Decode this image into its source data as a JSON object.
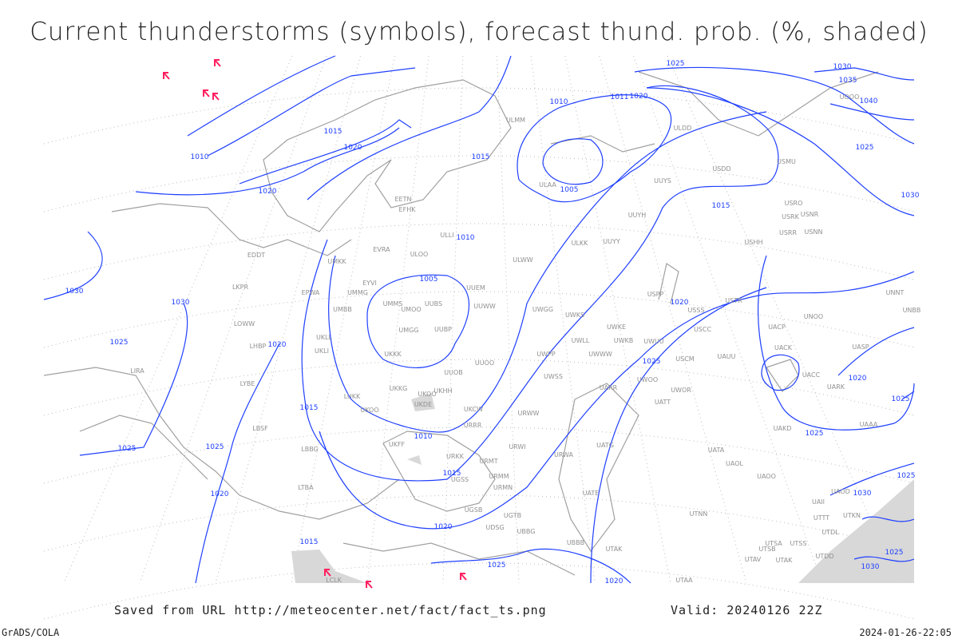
{
  "title": "Current thunderstorms (symbols), forecast thund. prob. (%, shaded)",
  "footer": {
    "source": "Saved from URL http://meteocenter.net/fact/fact_ts.png",
    "valid": "Valid: 20240126 22Z",
    "software": "GrADS/COLA",
    "generated": "2024-01-26-22:05"
  },
  "colors": {
    "isobar": "#1f3fff",
    "coastline": "#a0a0a0",
    "station_label": "#909090",
    "thunderstorm_symbol": "#ff2060",
    "probability_shading": "#d8d8d8"
  },
  "isobar_labels": [
    "1010",
    "1015",
    "1020",
    "1020",
    "1030",
    "1030",
    "1025",
    "1020",
    "1015",
    "1025",
    "1025",
    "1020",
    "1015",
    "1020",
    "1015",
    "1010",
    "1005",
    "1010",
    "1015",
    "1010",
    "1005",
    "1015",
    "1020",
    "1025",
    "1025",
    "1020",
    "1025",
    "1025",
    "1020",
    "1011",
    "1025",
    "1030",
    "1035",
    "1040",
    "1030",
    "1025",
    "1030",
    "1025",
    "1020",
    "1025",
    "1030"
  ],
  "stations": [
    "ULAA",
    "UUYS",
    "UUYH",
    "ULKK",
    "UUYY",
    "ULWW",
    "ULLI",
    "ULOO",
    "EVRA",
    "EETN",
    "EFHK",
    "UMKK",
    "EYVI",
    "UMMG",
    "UMBB",
    "UMMS",
    "UMOO",
    "UUBS",
    "UUEM",
    "UUWW",
    "UWGG",
    "UWKS",
    "UWKE",
    "UWLL",
    "UWKB",
    "UWUU",
    "UWWW",
    "UWPP",
    "UMGG",
    "UUBP",
    "UKKK",
    "UUOO",
    "UUOB",
    "UKHH",
    "UKKG",
    "UKOO",
    "UKDE",
    "LUKK",
    "UKOO",
    "UKCW",
    "URRR",
    "UKFF",
    "URWW",
    "URWI",
    "UWSS",
    "URWA",
    "UATG",
    "UWOO",
    "UWOR",
    "UATT",
    "UARR",
    "USCM",
    "USCC",
    "USSS",
    "USTR",
    "UAUU",
    "UACP",
    "UACK",
    "UACC",
    "UARK",
    "UNOO",
    "UASP",
    "UAKD",
    "UAAA",
    "UATA",
    "UAOL",
    "UAOO",
    "UAOD",
    "UAII",
    "UTTT",
    "UTKN",
    "UTDL",
    "UTSA",
    "UTSB",
    "UTAV",
    "UTAK",
    "UTDD",
    "UTSS",
    "UTNN",
    "UTAA",
    "UTAK",
    "UBBB",
    "UATE",
    "UGTB",
    "UGSS",
    "UGSB",
    "UDSG",
    "UBBG",
    "URMT",
    "URMM",
    "URMN",
    "URKK",
    "USPP",
    "USNR",
    "USRO",
    "USRK",
    "USRR",
    "USNN",
    "USHH",
    "UOOO",
    "UNNT",
    "UNBB",
    "USMU",
    "USDD",
    "ULDD",
    "ULMM",
    "EDDT",
    "LKPR",
    "EPWA",
    "LOWW",
    "LHBP",
    "UKLL",
    "UKLI",
    "LIRA",
    "LYBE",
    "LBSF",
    "LBBG",
    "LTBA",
    "LCLK"
  ],
  "thunderstorm_symbol_count": 7
}
